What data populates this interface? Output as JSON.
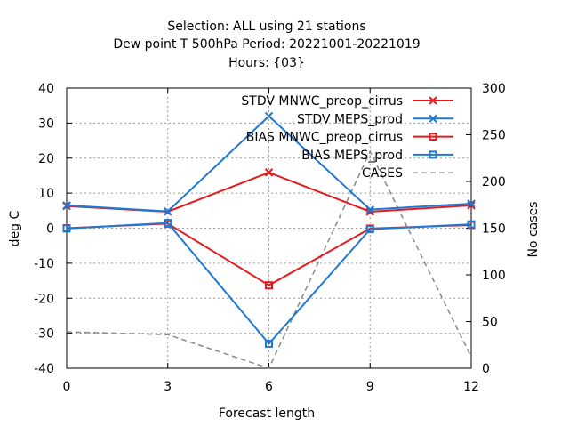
{
  "chart_data": {
    "type": "line",
    "title_lines": [
      "Selection: ALL using    21 stations",
      "Dew point T 500hPa   Period: 20221001-20221019",
      "Hours: {03}"
    ],
    "xlabel": "Forecast length",
    "ylabel": "deg C",
    "y2label": "No cases",
    "xlim": [
      0,
      12
    ],
    "ylim": [
      -40,
      40
    ],
    "y2lim": [
      0,
      300
    ],
    "x_ticks": [
      0,
      3,
      6,
      9,
      12
    ],
    "y_ticks": [
      -40,
      -30,
      -20,
      -10,
      0,
      10,
      20,
      30,
      40
    ],
    "y2_ticks": [
      0,
      50,
      100,
      150,
      200,
      250,
      300
    ],
    "grid": true,
    "legend_position": "top-right",
    "colors": {
      "mnwc": "#e41a1c",
      "meps": "#1f78d4",
      "cases": "#888888"
    },
    "series": [
      {
        "name": "STDV MNWC_preop_cirrus",
        "axis": "y",
        "color_key": "mnwc",
        "marker": "x",
        "x": [
          0,
          3,
          6,
          9,
          12
        ],
        "values": [
          6.3,
          4.7,
          15.9,
          4.7,
          6.5
        ]
      },
      {
        "name": "STDV MEPS_prod",
        "axis": "y",
        "color_key": "meps",
        "marker": "x",
        "x": [
          0,
          3,
          6,
          9,
          12
        ],
        "values": [
          6.5,
          4.8,
          32.0,
          5.3,
          7.0
        ]
      },
      {
        "name": "BIAS MNWC_preop_cirrus",
        "axis": "y",
        "color_key": "mnwc",
        "marker": "square",
        "x": [
          0,
          3,
          6,
          9,
          12
        ],
        "values": [
          0.0,
          1.3,
          -16.3,
          -0.1,
          0.9
        ]
      },
      {
        "name": "BIAS MEPS_prod",
        "axis": "y",
        "color_key": "meps",
        "marker": "square",
        "x": [
          0,
          3,
          6,
          9,
          12
        ],
        "values": [
          -0.1,
          1.5,
          -33.0,
          -0.3,
          1.1
        ]
      },
      {
        "name": "CASES",
        "axis": "y2",
        "color_key": "cases",
        "marker": "none",
        "dashed": true,
        "x": [
          0,
          3,
          6,
          9,
          12
        ],
        "values": [
          39,
          36,
          0,
          232,
          12
        ]
      }
    ]
  }
}
